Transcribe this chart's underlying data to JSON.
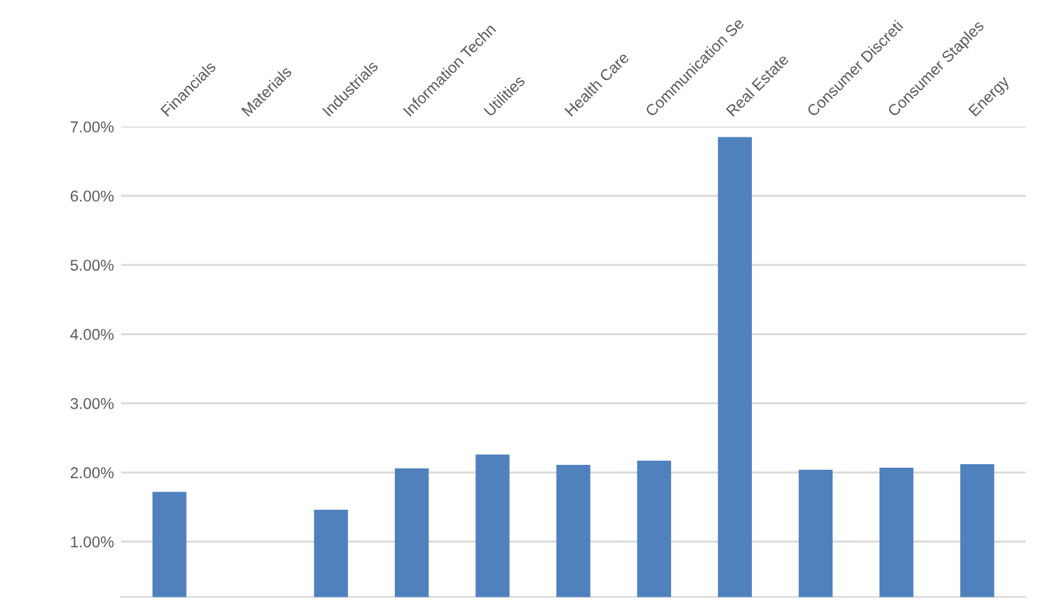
{
  "chart_data": {
    "type": "bar",
    "categories": [
      "Financials",
      "Materials",
      "Industrials",
      "Information Techn",
      "Utilities",
      "Health Care",
      "Communication Se",
      "Real Estate",
      "Consumer Discreti",
      "Consumer Staples",
      "Energy"
    ],
    "values": [
      1.72,
      null,
      1.46,
      2.06,
      2.26,
      2.11,
      2.17,
      6.85,
      2.04,
      2.07,
      2.12
    ],
    "color": "#4f81bd",
    "ylim": [
      0.2,
      7.0
    ],
    "yticks": [
      {
        "value": 1,
        "label": "1.00%"
      },
      {
        "value": 2,
        "label": "2.00%"
      },
      {
        "value": 3,
        "label": "3.00%"
      },
      {
        "value": 4,
        "label": "4.00%"
      },
      {
        "value": 5,
        "label": "5.00%"
      },
      {
        "value": 6,
        "label": "6.00%"
      },
      {
        "value": 7,
        "label": "7.00%"
      }
    ],
    "grid": "y"
  }
}
